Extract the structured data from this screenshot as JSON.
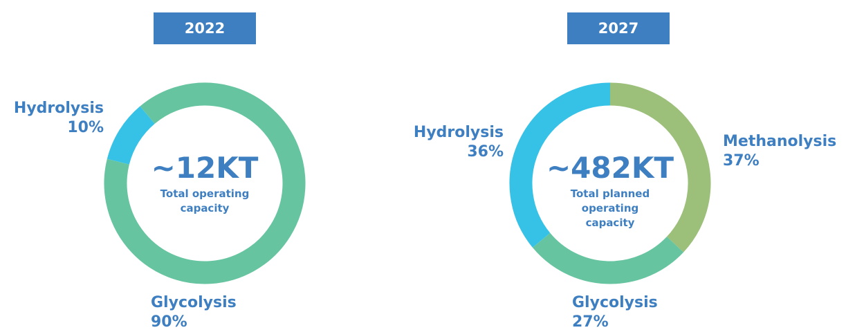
{
  "chart_data": [
    {
      "type": "donut",
      "title": "2022",
      "center_value": "~12KT",
      "center_label": "Total operating capacity",
      "categories": [
        "Hydrolysis",
        "Glycolysis"
      ],
      "values": [
        10,
        90
      ],
      "value_labels": [
        "10%",
        "90%"
      ],
      "colors": [
        "#36c2e6",
        "#66c5a0"
      ]
    },
    {
      "type": "donut",
      "title": "2027",
      "center_value": "~482KT",
      "center_label": "Total planned operating capacity",
      "categories": [
        "Methanolysis",
        "Glycolysis",
        "Hydrolysis"
      ],
      "values": [
        37,
        27,
        36
      ],
      "value_labels": [
        "37%",
        "27%",
        "36%"
      ],
      "colors": [
        "#9cbf7a",
        "#66c5a0",
        "#36c2e6"
      ]
    }
  ]
}
